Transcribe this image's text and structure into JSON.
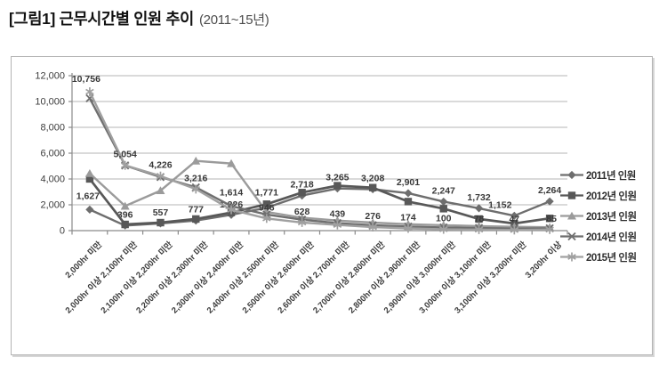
{
  "title": {
    "main": "[그림1] 근무시간별 인원 추이",
    "sub": "(2011~15년)"
  },
  "chart_data": {
    "type": "line",
    "title": "근무시간별 인원 추이 (2011~15년)",
    "xlabel": "",
    "ylabel": "",
    "ylim": [
      0,
      12000
    ],
    "ytick_step": 2000,
    "ytick_labels": [
      "0",
      "2,000",
      "4,000",
      "6,000",
      "8,000",
      "10,000",
      "12,000"
    ],
    "grid": true,
    "legend_position": "right",
    "categories": [
      "2,000hr 미만",
      "2,000hr 이상 2,100hr 미만",
      "2,100hr 이상 2,200hr 미만",
      "2,200hr 이상 2,300hr 미만",
      "2,300hr 이상 2,400hr 미만",
      "2,400hr 이상 2,500hr 미만",
      "2,500hr 이상 2,600hr 미만",
      "2,600hr 이상 2,700hr 미만",
      "2,700hr 이상 2,800hr 미만",
      "2,800hr 이상 2,900hr 미만",
      "2,900hr 이상 3,000hr 미만",
      "3,000hr 이상 3,100hr 미만",
      "3,100hr 이상 3,200hr 미만",
      "3,200hr 이상"
    ],
    "series": [
      {
        "name": "2011년 인원",
        "marker": "diamond",
        "color": "#6e6e6e",
        "labeled": true,
        "values": [
          1627,
          396,
          557,
          777,
          1226,
          1771,
          2718,
          3265,
          3208,
          2901,
          2247,
          1732,
          1152,
          2264
        ]
      },
      {
        "name": "2012년 인원",
        "marker": "square",
        "color": "#585858",
        "labeled": false,
        "values": [
          4004,
          480,
          620,
          900,
          1400,
          2050,
          2950,
          3480,
          3330,
          2250,
          1700,
          900,
          550,
          950
        ]
      },
      {
        "name": "2013년 인원",
        "marker": "triangle",
        "color": "#9b9b9b",
        "labeled": false,
        "values": [
          4430,
          1900,
          3100,
          5400,
          5200,
          1450,
          1000,
          780,
          620,
          500,
          420,
          350,
          300,
          260
        ]
      },
      {
        "name": "2014년 인원",
        "marker": "x",
        "color": "#6f6f6f",
        "labeled": false,
        "values": [
          10250,
          5050,
          4150,
          3350,
          1900,
          1250,
          850,
          580,
          420,
          320,
          250,
          200,
          160,
          180
        ]
      },
      {
        "name": "2015년 인원",
        "marker": "asterisk",
        "color": "#a0a0a0",
        "labeled": true,
        "values": [
          10756,
          5054,
          4226,
          3216,
          1614,
          946,
          628,
          439,
          276,
          174,
          100,
          78,
          47,
          85
        ]
      }
    ]
  }
}
